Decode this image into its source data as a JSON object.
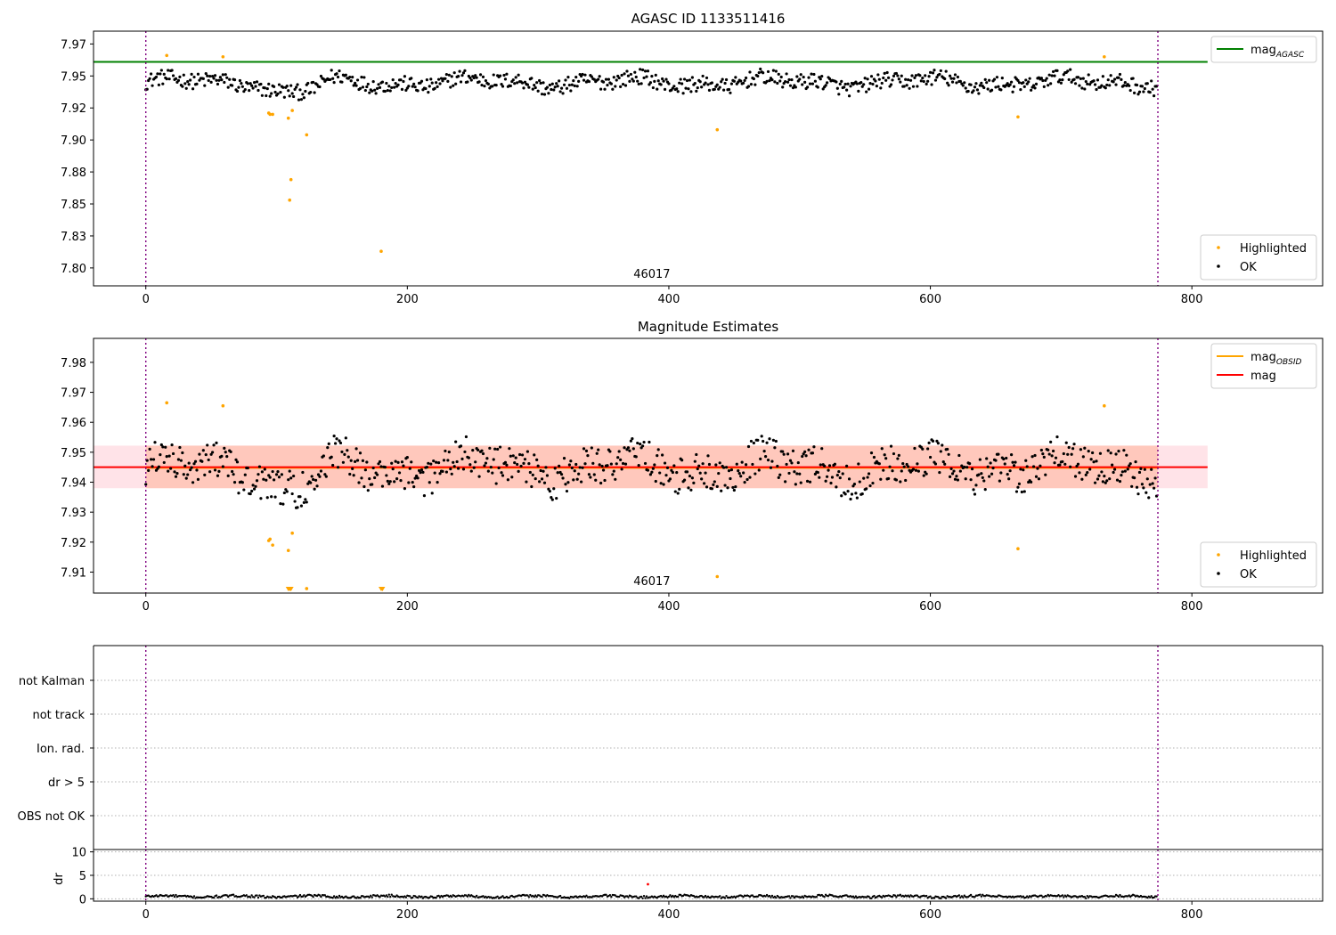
{
  "figure": {
    "title": "AGASC ID 1133511416",
    "background": "#ffffff"
  },
  "chart_data": [
    {
      "type": "scatter",
      "title": "AGASC ID 1133511416",
      "xlim": [
        -40,
        900
      ],
      "ylim": [
        7.786,
        7.985
      ],
      "xticks": [
        0,
        200,
        400,
        600,
        800
      ],
      "yticks": [
        7.8,
        7.825,
        7.85,
        7.875,
        7.9,
        7.925,
        7.95,
        7.975
      ],
      "annotation": "46017",
      "obs_bounds": [
        0,
        774
      ],
      "hlines": [
        {
          "name": "mag_AGASC",
          "label_main": "mag",
          "label_sub": "AGASC",
          "y": 7.961,
          "x_range": [
            -40,
            812
          ],
          "color": "#008000"
        }
      ],
      "legends": [
        {
          "position": "top-right",
          "entries": [
            {
              "label_main": "mag",
              "label_sub": "AGASC",
              "kind": "line",
              "color": "#008000"
            }
          ]
        },
        {
          "position": "lower-right",
          "entries": [
            {
              "label_main": "Highlighted",
              "kind": "dot",
              "color": "#ffa500"
            },
            {
              "label_main": "OK",
              "kind": "dot",
              "color": "#000000"
            }
          ]
        }
      ],
      "series": [
        {
          "name": "OK",
          "color": "#000000",
          "base": 7.945,
          "noise": 0.006,
          "n": 774,
          "x_range": [
            0,
            774
          ]
        },
        {
          "name": "Highlighted",
          "color": "#ffa500",
          "points": [
            [
              16,
              7.966
            ],
            [
              59,
              7.965
            ],
            [
              94,
              7.921
            ],
            [
              95,
              7.92
            ],
            [
              97,
              7.92
            ],
            [
              109,
              7.917
            ],
            [
              110,
              7.853
            ],
            [
              111,
              7.869
            ],
            [
              112,
              7.923
            ],
            [
              123,
              7.904
            ],
            [
              180,
              7.813
            ],
            [
              437,
              7.908
            ],
            [
              667,
              7.918
            ],
            [
              733,
              7.965
            ]
          ]
        }
      ]
    },
    {
      "type": "scatter",
      "title": "Magnitude Estimates",
      "xlim": [
        -40,
        900
      ],
      "ylim": [
        7.903,
        7.988
      ],
      "xticks": [
        0,
        200,
        400,
        600,
        800
      ],
      "yticks": [
        7.91,
        7.92,
        7.93,
        7.94,
        7.95,
        7.96,
        7.97,
        7.98
      ],
      "annotation": "46017",
      "obs_bounds": [
        0,
        774
      ],
      "hlines": [
        {
          "name": "mag_OBSID",
          "label_main": "mag",
          "label_sub": "OBSID",
          "y": 7.9448,
          "x_range": [
            0,
            774
          ],
          "color": "#ffa500"
        },
        {
          "name": "mag",
          "label_main": "mag",
          "y": 7.945,
          "x_range": [
            -40,
            812
          ],
          "color": "#ff0000"
        }
      ],
      "bands": [
        {
          "name": "mag_band",
          "y_range": [
            7.938,
            7.9522
          ],
          "x_range": [
            -40,
            812
          ],
          "color": "#ffc0cb",
          "opacity": 0.45
        },
        {
          "name": "mag_OBSID_band",
          "y_range": [
            7.938,
            7.9522
          ],
          "x_range": [
            0,
            774
          ],
          "color": "#ffa07a",
          "opacity": 0.4
        }
      ],
      "legends": [
        {
          "position": "top-right",
          "entries": [
            {
              "label_main": "mag",
              "label_sub": "OBSID",
              "kind": "line",
              "color": "#ffa500"
            },
            {
              "label_main": "mag",
              "kind": "line",
              "color": "#ff0000"
            }
          ]
        },
        {
          "position": "lower-right",
          "entries": [
            {
              "label_main": "Highlighted",
              "kind": "dot",
              "color": "#ffa500"
            },
            {
              "label_main": "OK",
              "kind": "dot",
              "color": "#000000"
            }
          ]
        }
      ],
      "series": [
        {
          "name": "OK",
          "color": "#000000",
          "base": 7.945,
          "noise": 0.006,
          "n": 774,
          "x_range": [
            0,
            774
          ]
        },
        {
          "name": "Highlighted",
          "color": "#ffa500",
          "points": [
            [
              16,
              7.9665
            ],
            [
              59,
              7.9655
            ],
            [
              94,
              7.9205
            ],
            [
              95,
              7.921
            ],
            [
              97,
              7.919
            ],
            [
              109,
              7.9172
            ],
            [
              112,
              7.923
            ],
            [
              123,
              7.9045
            ],
            [
              437,
              7.9085
            ],
            [
              667,
              7.9178
            ],
            [
              733,
              7.9655
            ]
          ]
        },
        {
          "name": "Highlighted-clipped",
          "color": "#ffa500",
          "marker": "triangle-down",
          "points": [
            [
              109,
              7.904
            ],
            [
              110,
              7.904
            ],
            [
              111,
              7.904
            ],
            [
              180,
              7.904
            ],
            [
              181,
              7.904
            ]
          ]
        }
      ]
    },
    {
      "type": "table",
      "title": "",
      "xlim": [
        -40,
        900
      ],
      "obs_bounds": [
        0,
        774
      ],
      "categories": [
        "not Kalman",
        "not track",
        "Ion. rad.",
        "dr > 5",
        "OBS not OK"
      ],
      "grid": "dotted"
    },
    {
      "type": "line",
      "title": "",
      "xlim": [
        -40,
        900
      ],
      "ylim": [
        -0.5,
        10.5
      ],
      "xticks": [
        0,
        200,
        400,
        600,
        800
      ],
      "yticks": [
        0,
        5,
        10
      ],
      "ylabel": "dr",
      "obs_bounds": [
        0,
        774
      ],
      "series": [
        {
          "name": "dr",
          "color": "#000000",
          "base": 0.5,
          "noise": 0.25,
          "n": 774,
          "x_range": [
            0,
            774
          ]
        },
        {
          "name": "dr-outlier",
          "color": "#ff0000",
          "points": [
            [
              384,
              3.1
            ]
          ]
        }
      ]
    }
  ]
}
